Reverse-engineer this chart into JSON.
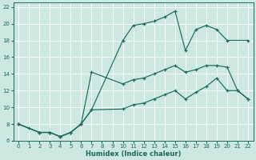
{
  "xlabel": "Humidex (Indice chaleur)",
  "bg_color": "#cce8e0",
  "grid_color": "#ffffff",
  "line_color": "#1a6b5a",
  "xlim": [
    -0.5,
    22.5
  ],
  "ylim": [
    6,
    22.5
  ],
  "xticks": [
    0,
    1,
    2,
    3,
    4,
    5,
    6,
    7,
    8,
    9,
    10,
    11,
    12,
    13,
    14,
    15,
    16,
    17,
    18,
    19,
    20,
    21,
    22
  ],
  "yticks": [
    6,
    8,
    10,
    12,
    14,
    16,
    18,
    20,
    22
  ],
  "series": [
    {
      "x": [
        0,
        1,
        2,
        3,
        4,
        5,
        6,
        7,
        10,
        11,
        12,
        13,
        14,
        15,
        16,
        17,
        18,
        19,
        20,
        22
      ],
      "y": [
        8,
        7.5,
        7,
        7,
        6.5,
        7,
        8,
        9.7,
        18,
        19.8,
        20,
        20.3,
        20.8,
        21.5,
        16.8,
        19.3,
        19.8,
        19.3,
        18,
        18
      ]
    },
    {
      "x": [
        0,
        2,
        3,
        4,
        5,
        6,
        7,
        10,
        11,
        12,
        13,
        14,
        15,
        16,
        17,
        18,
        19,
        20,
        21,
        22
      ],
      "y": [
        8,
        7,
        7,
        6.5,
        7,
        8,
        14.2,
        12.8,
        13.3,
        13.5,
        14.0,
        14.5,
        15.0,
        14.2,
        14.5,
        15.0,
        15.0,
        14.8,
        12.0,
        11.0
      ]
    },
    {
      "x": [
        0,
        2,
        3,
        4,
        5,
        6,
        7,
        10,
        11,
        12,
        13,
        14,
        15,
        16,
        17,
        18,
        19,
        20,
        21,
        22
      ],
      "y": [
        8,
        7,
        7,
        6.5,
        7,
        8,
        9.7,
        9.8,
        10.3,
        10.5,
        11.0,
        11.5,
        12.0,
        11.0,
        11.8,
        12.5,
        13.5,
        12.0,
        12.0,
        11.0
      ]
    }
  ]
}
